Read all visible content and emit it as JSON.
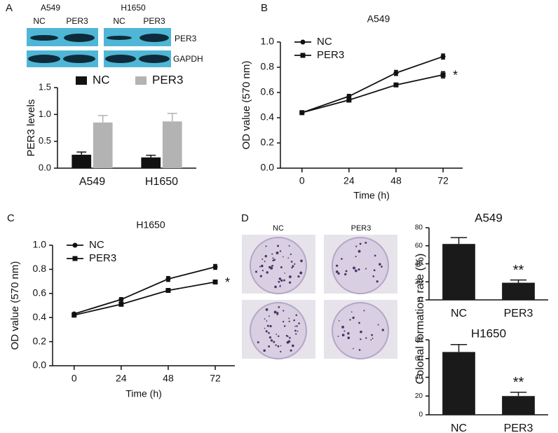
{
  "panel_letters": [
    "A",
    "B",
    "C",
    "D"
  ],
  "blot": {
    "cell_lines": [
      "A549",
      "H1650"
    ],
    "lanes": [
      "NC",
      "PER3",
      "NC",
      "PER3"
    ],
    "rows": [
      "PER3",
      "GAPDH"
    ]
  },
  "photos": {
    "columns": [
      "NC",
      "PER3"
    ]
  },
  "chart_data": [
    {
      "type": "bar",
      "categories": [
        "A549",
        "H1650"
      ],
      "ylabel": "PER3 levels",
      "legend": "top",
      "series": [
        {
          "name": "NC",
          "color": "#111111",
          "values": [
            0.25,
            0.2
          ],
          "errors": [
            0.05,
            0.04
          ]
        },
        {
          "name": "PER3",
          "color": "#b3b3b3",
          "values": [
            0.85,
            0.87
          ],
          "errors": [
            0.13,
            0.15
          ]
        }
      ],
      "ylim": [
        0,
        1.5
      ],
      "yticks": [
        {
          "value": 0,
          "label": "0.0"
        },
        0.5,
        {
          "value": 1,
          "label": "1.0"
        },
        1.5
      ]
    },
    {
      "type": "line",
      "title": "A549",
      "xlabel": "Time (h)",
      "ylabel": "OD value (570 nm)",
      "annotation": "*",
      "x": [
        0,
        24,
        48,
        72
      ],
      "series": [
        {
          "name": "NC",
          "color": "#111111",
          "marker": "circle",
          "values": [
            0.44,
            0.57,
            0.755,
            0.885
          ],
          "errors": [
            0.01,
            0.015,
            0.02,
            0.02
          ]
        },
        {
          "name": "PER3",
          "color": "#111111",
          "marker": "square",
          "values": [
            0.44,
            0.54,
            0.66,
            0.74
          ],
          "errors": [
            0.01,
            0.015,
            0.01,
            0.025
          ]
        }
      ],
      "xlim": [
        -11,
        82
      ],
      "xticks": [
        0,
        24,
        48,
        72
      ],
      "ylim": [
        0,
        1
      ],
      "yticks": [
        {
          "value": 0,
          "label": "0.0"
        },
        0.2,
        0.4,
        0.6,
        0.8,
        {
          "value": 1,
          "label": "1.0"
        }
      ]
    },
    {
      "type": "line",
      "title": "H1650",
      "xlabel": "Time (h)",
      "ylabel": "OD value (570 nm)",
      "annotation": "*",
      "x": [
        0,
        24,
        48,
        72
      ],
      "series": [
        {
          "name": "NC",
          "color": "#111111",
          "marker": "circle",
          "values": [
            0.43,
            0.55,
            0.72,
            0.82
          ],
          "errors": [
            0.01,
            0.015,
            0.02,
            0.02
          ]
        },
        {
          "name": "PER3",
          "color": "#111111",
          "marker": "square",
          "values": [
            0.42,
            0.51,
            0.625,
            0.695
          ],
          "errors": [
            0.01,
            0.015,
            0.01,
            0.015
          ]
        }
      ],
      "xlim": [
        -11,
        82
      ],
      "xticks": [
        0,
        24,
        48,
        72
      ],
      "ylim": [
        0,
        1
      ],
      "yticks": [
        {
          "value": 0,
          "label": "0.0"
        },
        0.2,
        0.4,
        0.6,
        0.8,
        {
          "value": 1,
          "label": "1.0"
        }
      ]
    },
    {
      "type": "bar",
      "title": "A549",
      "ylabel": "Colonal formation rate (%)",
      "annotation": "**",
      "categories": [
        "NC",
        "PER3"
      ],
      "values": [
        62,
        19
      ],
      "errors": [
        7,
        3
      ],
      "color": "#1a1a1a",
      "ylim": [
        0,
        80
      ],
      "yticks": [
        0,
        20,
        40,
        60,
        80
      ]
    },
    {
      "type": "bar",
      "title": "H1650",
      "annotation": "**",
      "categories": [
        "NC",
        "PER3"
      ],
      "values": [
        67,
        20
      ],
      "errors": [
        8,
        4
      ],
      "color": "#1a1a1a",
      "ylim": [
        0,
        80
      ],
      "yticks": [
        0,
        20,
        40,
        60,
        80
      ]
    }
  ]
}
